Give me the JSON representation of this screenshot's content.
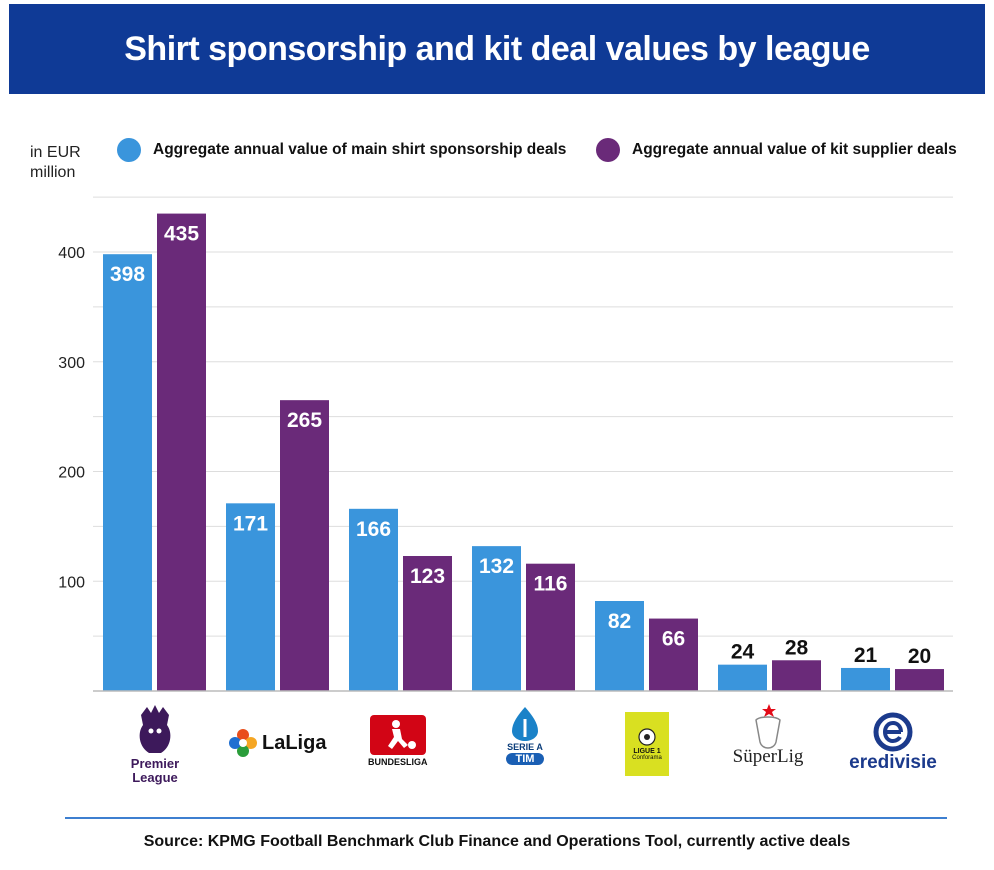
{
  "title": "Shirt sponsorship and kit deal values by league",
  "unit_label": "in EUR million",
  "source": "Source: KPMG Football Benchmark Club Finance and Operations Tool, currently active deals",
  "colors": {
    "header": "#0f3a96",
    "sponsor": "#3a95dc",
    "kit": "#6a2a79",
    "grid": "#dddddd",
    "source_line": "#3d7fd0"
  },
  "logos": {
    "premier_league": "Premier League",
    "laliga": "LaLiga",
    "bundesliga": "BUNDESLIGA",
    "serie_a": "SERIE A",
    "serie_a_tim": "TIM",
    "ligue1_line1": "LIGUE 1",
    "ligue1_line2": "Conforama",
    "superlig": "SüperLig",
    "eredivisie": "eredivisie"
  },
  "chart_data": {
    "type": "bar",
    "categories": [
      "Premier League",
      "LaLiga",
      "Bundesliga",
      "Serie A",
      "Ligue 1",
      "SüperLig",
      "Eredivisie"
    ],
    "series": [
      {
        "name": "Aggregate annual value of main shirt sponsorship deals",
        "color": "#3a95dc",
        "values": [
          398,
          171,
          166,
          132,
          82,
          24,
          21
        ]
      },
      {
        "name": "Aggregate annual value of kit supplier deals",
        "color": "#6a2a79",
        "values": [
          435,
          265,
          123,
          116,
          66,
          28,
          20
        ]
      }
    ],
    "yticks": [
      100,
      200,
      300,
      400
    ],
    "ylim": [
      0,
      450
    ],
    "ylabel": "in EUR million",
    "legend_position": "top",
    "grid": true
  }
}
